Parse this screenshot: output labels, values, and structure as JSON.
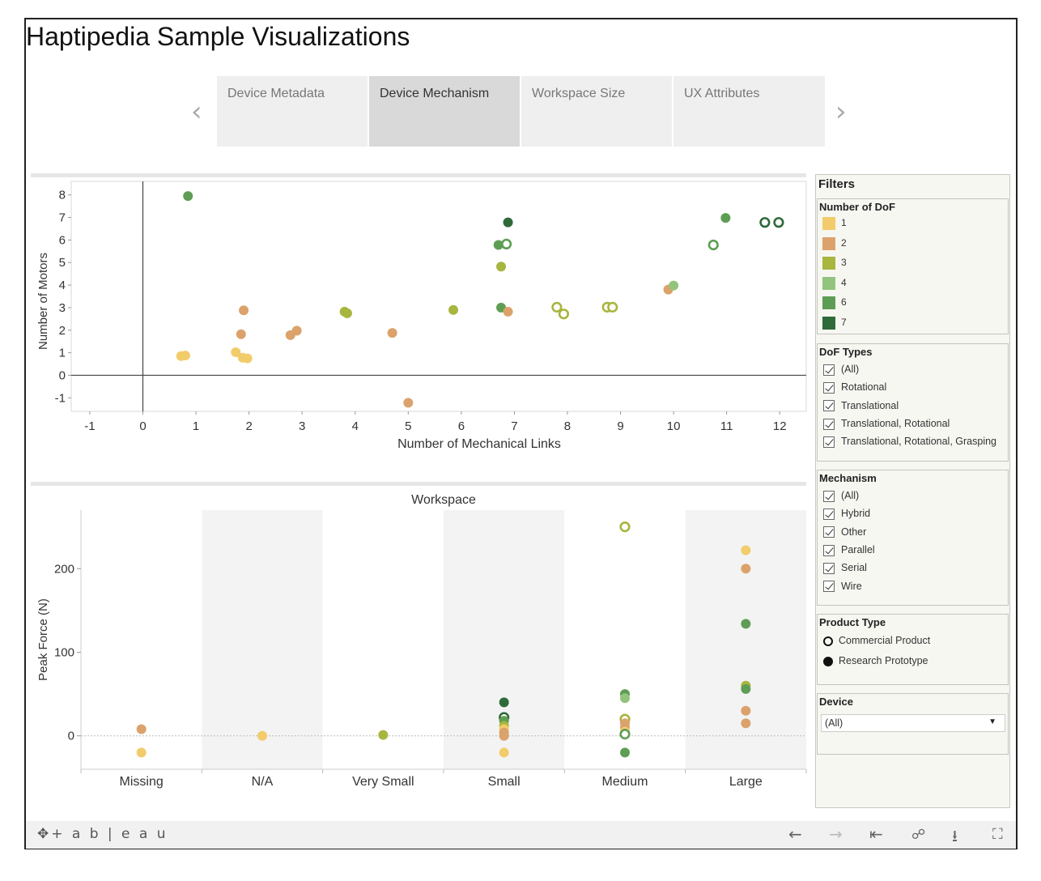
{
  "page": {
    "title": "Haptipedia Sample Visualizations"
  },
  "tabs": [
    {
      "label": "Device Metadata",
      "active": false
    },
    {
      "label": "Device Mechanism",
      "active": true
    },
    {
      "label": "Workspace Size",
      "active": false
    },
    {
      "label": "UX Attributes",
      "active": false
    }
  ],
  "nav": {
    "prev_icon": "chevron-left-icon",
    "next_icon": "chevron-right-icon"
  },
  "colors": {
    "1": "#f2cc6b",
    "2": "#dca26b",
    "3": "#a8b53e",
    "4": "#93c47d",
    "6": "#5e9e54",
    "7": "#2f6a3a"
  },
  "filters": {
    "title": "Filters",
    "dof": {
      "title": "Number of DoF",
      "items": [
        "1",
        "2",
        "3",
        "4",
        "6",
        "7"
      ]
    },
    "dof_types": {
      "title": "DoF Types",
      "items": [
        "(All)",
        "Rotational",
        "Translational",
        "Translational, Rotational",
        "Translational, Rotational, Grasping"
      ]
    },
    "mechanism": {
      "title": "Mechanism",
      "items": [
        "(All)",
        "Hybrid",
        "Other",
        "Parallel",
        "Serial",
        "Wire"
      ]
    },
    "product_type": {
      "title": "Product Type",
      "items": [
        "Commercial Product",
        "Research Prototype"
      ]
    },
    "device": {
      "title": "Device",
      "selected": "(All)"
    }
  },
  "footer": {
    "logo": "+ a b | e a u",
    "icons": [
      "undo-icon",
      "redo-icon",
      "revert-icon",
      "share-icon",
      "download-icon",
      "fullscreen-icon"
    ]
  },
  "chart_data": [
    {
      "type": "scatter",
      "title": "",
      "xlabel": "Number of Mechanical Links",
      "ylabel": "Number of Motors",
      "xlim": [
        -1.35,
        12.5
      ],
      "ylim": [
        -1.6,
        8.6
      ],
      "xticks": [
        -1,
        0,
        1,
        2,
        3,
        4,
        5,
        6,
        7,
        8,
        9,
        10,
        11,
        12
      ],
      "yticks": [
        -1,
        0,
        1,
        2,
        3,
        4,
        5,
        6,
        7,
        8
      ],
      "points": [
        {
          "x": 0.85,
          "y": 7.95,
          "dof": "6",
          "filled": true
        },
        {
          "x": 0.72,
          "y": 0.85,
          "dof": "1",
          "filled": true
        },
        {
          "x": 0.8,
          "y": 0.88,
          "dof": "1",
          "filled": true
        },
        {
          "x": 1.75,
          "y": 1.02,
          "dof": "1",
          "filled": true
        },
        {
          "x": 1.88,
          "y": 0.78,
          "dof": "1",
          "filled": true
        },
        {
          "x": 1.97,
          "y": 0.75,
          "dof": "1",
          "filled": true
        },
        {
          "x": 1.9,
          "y": 2.88,
          "dof": "2",
          "filled": true
        },
        {
          "x": 1.85,
          "y": 1.82,
          "dof": "2",
          "filled": true
        },
        {
          "x": 2.78,
          "y": 1.78,
          "dof": "2",
          "filled": true
        },
        {
          "x": 2.9,
          "y": 1.98,
          "dof": "2",
          "filled": true
        },
        {
          "x": 3.8,
          "y": 2.82,
          "dof": "3",
          "filled": true
        },
        {
          "x": 3.85,
          "y": 2.75,
          "dof": "3",
          "filled": true
        },
        {
          "x": 4.7,
          "y": 1.88,
          "dof": "2",
          "filled": true
        },
        {
          "x": 5.0,
          "y": -1.22,
          "dof": "2",
          "filled": true
        },
        {
          "x": 5.85,
          "y": 2.9,
          "dof": "3",
          "filled": true
        },
        {
          "x": 6.7,
          "y": 5.78,
          "dof": "6",
          "filled": true
        },
        {
          "x": 6.85,
          "y": 5.82,
          "dof": "6",
          "filled": false
        },
        {
          "x": 6.75,
          "y": 4.82,
          "dof": "3",
          "filled": true
        },
        {
          "x": 6.88,
          "y": 6.78,
          "dof": "7",
          "filled": true
        },
        {
          "x": 6.75,
          "y": 3.0,
          "dof": "6",
          "filled": true
        },
        {
          "x": 6.88,
          "y": 2.82,
          "dof": "2",
          "filled": true
        },
        {
          "x": 7.8,
          "y": 3.02,
          "dof": "3",
          "filled": false
        },
        {
          "x": 7.93,
          "y": 2.72,
          "dof": "3",
          "filled": false
        },
        {
          "x": 8.75,
          "y": 3.02,
          "dof": "3",
          "filled": false
        },
        {
          "x": 8.85,
          "y": 3.02,
          "dof": "3",
          "filled": false
        },
        {
          "x": 9.9,
          "y": 3.8,
          "dof": "2",
          "filled": true
        },
        {
          "x": 10.0,
          "y": 3.98,
          "dof": "4",
          "filled": true
        },
        {
          "x": 10.75,
          "y": 5.78,
          "dof": "6",
          "filled": false
        },
        {
          "x": 10.98,
          "y": 6.98,
          "dof": "6",
          "filled": true
        },
        {
          "x": 11.72,
          "y": 6.78,
          "dof": "7",
          "filled": false
        },
        {
          "x": 11.98,
          "y": 6.78,
          "dof": "7",
          "filled": false
        }
      ]
    },
    {
      "type": "scatter",
      "title": "Workspace",
      "xlabel": "",
      "ylabel": "Peak Force (N)",
      "categories": [
        "Missing",
        "N/A",
        "Very Small",
        "Small",
        "Medium",
        "Large"
      ],
      "ylim": [
        -40,
        270
      ],
      "yticks": [
        0,
        100,
        200
      ],
      "points": [
        {
          "cat": "Missing",
          "y": 8,
          "dof": "2",
          "filled": true
        },
        {
          "cat": "Missing",
          "y": -20,
          "dof": "1",
          "filled": true
        },
        {
          "cat": "N/A",
          "y": 0,
          "dof": "1",
          "filled": true
        },
        {
          "cat": "Very Small",
          "y": 1,
          "dof": "3",
          "filled": true
        },
        {
          "cat": "Small",
          "y": 40,
          "dof": "7",
          "filled": true
        },
        {
          "cat": "Small",
          "y": 22,
          "dof": "7",
          "filled": false
        },
        {
          "cat": "Small",
          "y": 18,
          "dof": "6",
          "filled": true
        },
        {
          "cat": "Small",
          "y": 12,
          "dof": "3",
          "filled": true
        },
        {
          "cat": "Small",
          "y": 8,
          "dof": "1",
          "filled": true
        },
        {
          "cat": "Small",
          "y": 4,
          "dof": "2",
          "filled": true
        },
        {
          "cat": "Small",
          "y": 0,
          "dof": "2",
          "filled": true
        },
        {
          "cat": "Small",
          "y": -20,
          "dof": "1",
          "filled": true
        },
        {
          "cat": "Medium",
          "y": 250,
          "dof": "3",
          "filled": false
        },
        {
          "cat": "Medium",
          "y": 50,
          "dof": "6",
          "filled": true
        },
        {
          "cat": "Medium",
          "y": 45,
          "dof": "4",
          "filled": true
        },
        {
          "cat": "Medium",
          "y": 20,
          "dof": "3",
          "filled": false
        },
        {
          "cat": "Medium",
          "y": 15,
          "dof": "2",
          "filled": true
        },
        {
          "cat": "Medium",
          "y": 10,
          "dof": "2",
          "filled": true
        },
        {
          "cat": "Medium",
          "y": 5,
          "dof": "1",
          "filled": true
        },
        {
          "cat": "Medium",
          "y": 2,
          "dof": "6",
          "filled": false
        },
        {
          "cat": "Medium",
          "y": -20,
          "dof": "6",
          "filled": true
        },
        {
          "cat": "Large",
          "y": 222,
          "dof": "1",
          "filled": true
        },
        {
          "cat": "Large",
          "y": 200,
          "dof": "2",
          "filled": true
        },
        {
          "cat": "Large",
          "y": 134,
          "dof": "6",
          "filled": true
        },
        {
          "cat": "Large",
          "y": 60,
          "dof": "3",
          "filled": true
        },
        {
          "cat": "Large",
          "y": 56,
          "dof": "6",
          "filled": true
        },
        {
          "cat": "Large",
          "y": 30,
          "dof": "2",
          "filled": true
        },
        {
          "cat": "Large",
          "y": 15,
          "dof": "2",
          "filled": true
        }
      ]
    }
  ]
}
